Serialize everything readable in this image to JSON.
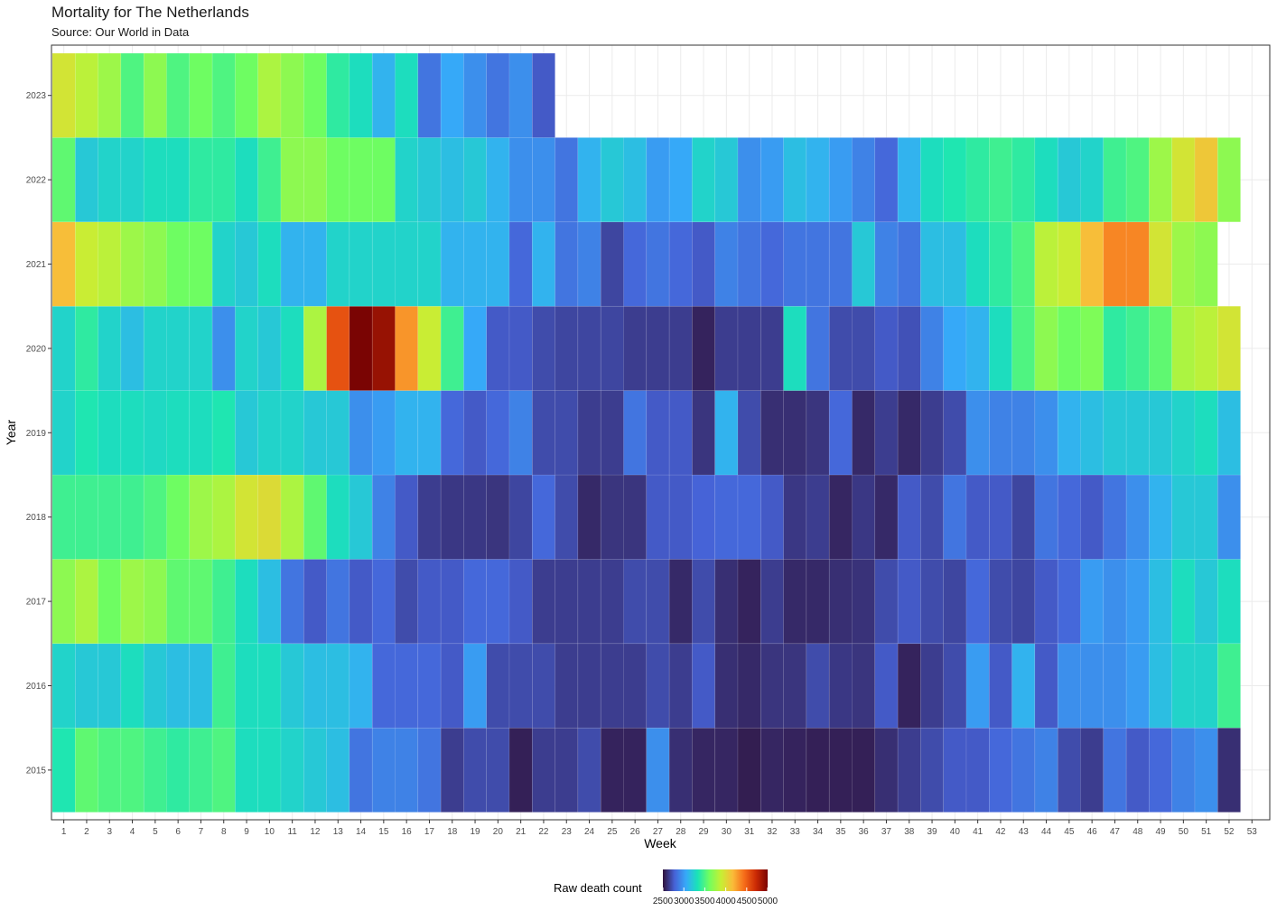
{
  "chart_data": {
    "type": "heatmap",
    "title": "Mortality for The Netherlands",
    "subtitle": "Source: Our World in Data",
    "xlabel": "Week",
    "ylabel": "Year",
    "x_ticks": [
      "1",
      "2",
      "3",
      "4",
      "5",
      "6",
      "7",
      "8",
      "9",
      "10",
      "11",
      "12",
      "13",
      "14",
      "15",
      "16",
      "17",
      "18",
      "19",
      "20",
      "21",
      "22",
      "23",
      "24",
      "25",
      "26",
      "27",
      "28",
      "29",
      "30",
      "31",
      "32",
      "33",
      "34",
      "35",
      "36",
      "37",
      "38",
      "39",
      "40",
      "41",
      "42",
      "43",
      "44",
      "45",
      "46",
      "47",
      "48",
      "49",
      "50",
      "51",
      "52",
      "53"
    ],
    "y_ticks": [
      "2015",
      "2016",
      "2017",
      "2018",
      "2019",
      "2020",
      "2021",
      "2022",
      "2023"
    ],
    "xlim": [
      0.5,
      53.5
    ],
    "grid": true,
    "legend": {
      "title": "Raw death count",
      "position": "bottom",
      "range": [
        2500,
        5000
      ],
      "ticks": [
        "2500",
        "3000",
        "3500",
        "4000",
        "4500",
        "5000"
      ],
      "colormap": [
        "#30123b",
        "#4662d7",
        "#36aaf9",
        "#1ae4b6",
        "#72fe5e",
        "#c7ef34",
        "#fabb39",
        "#f66b19",
        "#cb2a04",
        "#7a0403"
      ]
    },
    "series": [
      {
        "name": "2015",
        "values": [
          3350,
          3550,
          3500,
          3500,
          3450,
          3400,
          3450,
          3500,
          3300,
          3300,
          3250,
          3200,
          3150,
          2850,
          2900,
          2900,
          2850,
          2650,
          2700,
          2700,
          2550,
          2650,
          2650,
          2700,
          2560,
          2560,
          2950,
          2600,
          2570,
          2570,
          2540,
          2570,
          2560,
          2550,
          2550,
          2550,
          2600,
          2650,
          2700,
          2750,
          2750,
          2800,
          2850,
          2900,
          2700,
          2650,
          2850,
          2750,
          2800,
          2900,
          2950,
          2600
        ]
      },
      {
        "name": "2016",
        "values": [
          3250,
          3200,
          3200,
          3300,
          3200,
          3150,
          3150,
          3450,
          3300,
          3300,
          3200,
          3150,
          3150,
          3100,
          2800,
          2800,
          2800,
          2750,
          3000,
          2700,
          2700,
          2700,
          2650,
          2650,
          2650,
          2650,
          2700,
          2650,
          2750,
          2600,
          2580,
          2620,
          2620,
          2700,
          2630,
          2620,
          2750,
          2560,
          2650,
          2700,
          3000,
          2750,
          3100,
          2750,
          2950,
          2950,
          2950,
          3000,
          3150,
          3250,
          3250,
          3450
        ]
      },
      {
        "name": "2017",
        "values": [
          3700,
          3800,
          3600,
          3750,
          3700,
          3550,
          3550,
          3450,
          3300,
          3150,
          2850,
          2750,
          2850,
          2750,
          2800,
          2700,
          2750,
          2750,
          2800,
          2800,
          2750,
          2650,
          2650,
          2650,
          2650,
          2700,
          2700,
          2580,
          2700,
          2600,
          2560,
          2650,
          2580,
          2580,
          2600,
          2610,
          2700,
          2750,
          2700,
          2680,
          2800,
          2700,
          2680,
          2750,
          2800,
          3000,
          2950,
          3000,
          3150,
          3300,
          3200,
          3300
        ]
      },
      {
        "name": "2018",
        "values": [
          3450,
          3450,
          3450,
          3450,
          3500,
          3600,
          3750,
          3800,
          3950,
          4000,
          3800,
          3550,
          3300,
          3200,
          2900,
          2750,
          2650,
          2630,
          2630,
          2620,
          2680,
          2800,
          2700,
          2580,
          2620,
          2620,
          2750,
          2750,
          2780,
          2800,
          2800,
          2750,
          2630,
          2650,
          2570,
          2630,
          2580,
          2750,
          2700,
          2850,
          2750,
          2750,
          2680,
          2850,
          2800,
          2750,
          2850,
          2950,
          3100,
          3200,
          3200,
          2950
        ]
      },
      {
        "name": "2019",
        "values": [
          3250,
          3350,
          3300,
          3300,
          3280,
          3300,
          3300,
          3350,
          3200,
          3250,
          3250,
          3200,
          3200,
          2950,
          3000,
          3100,
          3100,
          2800,
          2750,
          2800,
          2900,
          2700,
          2700,
          2650,
          2650,
          2850,
          2750,
          2750,
          2620,
          3100,
          2700,
          2600,
          2600,
          2620,
          2800,
          2580,
          2650,
          2580,
          2650,
          2700,
          2950,
          2900,
          2900,
          2950,
          3100,
          3150,
          3200,
          3200,
          3200,
          3250,
          3300,
          3150
        ]
      },
      {
        "name": "2020",
        "values": [
          3250,
          3400,
          3250,
          3150,
          3250,
          3250,
          3250,
          2950,
          3250,
          3200,
          3300,
          3800,
          4550,
          5000,
          4900,
          4300,
          3900,
          3450,
          3050,
          2750,
          2750,
          2700,
          2680,
          2680,
          2680,
          2650,
          2650,
          2650,
          2560,
          2650,
          2650,
          2650,
          3300,
          2850,
          2700,
          2700,
          2750,
          2720,
          2900,
          3050,
          3100,
          3300,
          3500,
          3700,
          3600,
          3650,
          3400,
          3450,
          3550,
          3800,
          3850,
          3950
        ]
      },
      {
        "name": "2021",
        "values": [
          4150,
          3900,
          3850,
          3750,
          3700,
          3600,
          3600,
          3250,
          3200,
          3300,
          3100,
          3100,
          3250,
          3250,
          3250,
          3250,
          3250,
          3100,
          3100,
          3100,
          2800,
          3100,
          2850,
          2900,
          2680,
          2800,
          2850,
          2800,
          2750,
          2900,
          2850,
          2800,
          2850,
          2850,
          2850,
          3200,
          2900,
          2850,
          3150,
          3150,
          3300,
          3400,
          3500,
          3850,
          3900,
          4150,
          4350,
          4350,
          3950,
          3750,
          3700
        ]
      },
      {
        "name": "2022",
        "values": [
          3550,
          3200,
          3250,
          3250,
          3300,
          3300,
          3400,
          3400,
          3300,
          3450,
          3700,
          3700,
          3600,
          3600,
          3600,
          3250,
          3200,
          3150,
          3200,
          3100,
          2950,
          2950,
          2850,
          3100,
          3200,
          3150,
          3000,
          3050,
          3250,
          3200,
          2950,
          3000,
          3150,
          3100,
          3000,
          2900,
          2800,
          3100,
          3300,
          3350,
          3400,
          3450,
          3400,
          3300,
          3200,
          3250,
          3450,
          3500,
          3750,
          3950,
          4100,
          3700
        ]
      },
      {
        "name": "2023",
        "values": [
          3950,
          3850,
          3750,
          3500,
          3700,
          3500,
          3600,
          3500,
          3600,
          3800,
          3700,
          3600,
          3400,
          3300,
          3100,
          3300,
          2850,
          3050,
          2950,
          2850,
          2950,
          2750
        ]
      }
    ]
  }
}
